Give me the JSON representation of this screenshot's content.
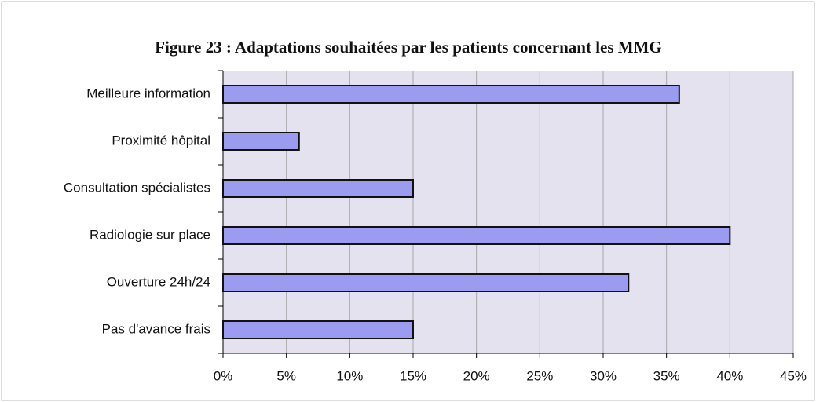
{
  "chart_data": {
    "type": "bar",
    "orientation": "horizontal",
    "title": "Figure 23 : Adaptations souhaitées par les patients concernant les MMG",
    "categories": [
      "Meilleure information",
      "Proximité hôpital",
      "Consultation spécialistes",
      "Radiologie sur place",
      "Ouverture 24h/24",
      "Pas d'avance frais"
    ],
    "values": [
      36,
      6,
      15,
      40,
      32,
      15
    ],
    "color": "#9b9bf0",
    "xlim": [
      0,
      45
    ],
    "xticks": [
      {
        "value": 0,
        "label": "0%"
      },
      {
        "value": 5,
        "label": "5%"
      },
      {
        "value": 10,
        "label": "10%"
      },
      {
        "value": 15,
        "label": "15%"
      },
      {
        "value": 20,
        "label": "20%"
      },
      {
        "value": 25,
        "label": "25%"
      },
      {
        "value": 30,
        "label": "30%"
      },
      {
        "value": 35,
        "label": "35%"
      },
      {
        "value": 40,
        "label": "40%"
      },
      {
        "value": 45,
        "label": "45%"
      }
    ],
    "grid": true
  }
}
